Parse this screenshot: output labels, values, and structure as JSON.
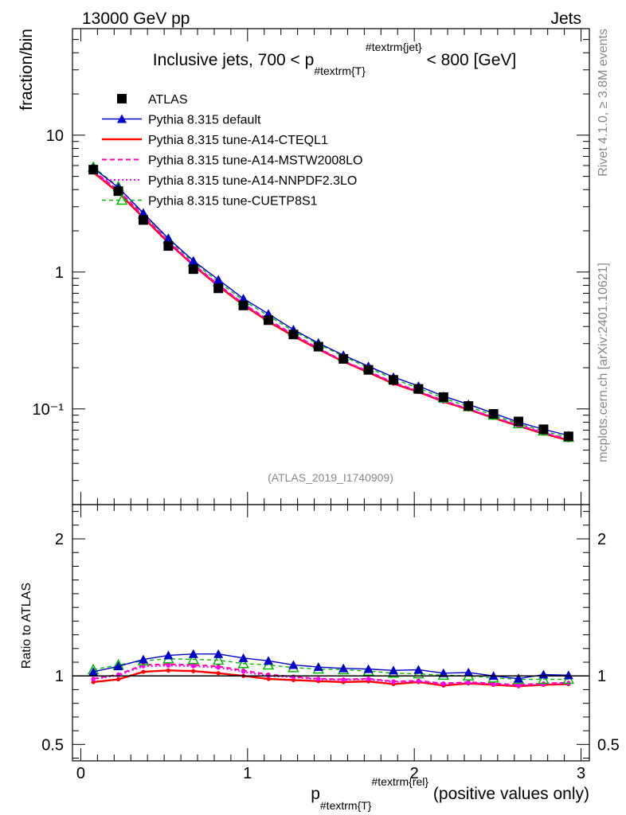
{
  "header": {
    "left": "13000 GeV pp",
    "right": "Jets"
  },
  "side_text": {
    "rivet": "Rivet 4.1.0, ≥ 3.8M events",
    "mcplots": "mcplots.cern.ch [arXiv:2401.10621]"
  },
  "analysis_id": "(ATLAS_2019_I1740909)",
  "chart_data": [
    {
      "type": "line",
      "title": "Inclusive jets, 700 < p_{#textrm{T}}^{#textrm{jet}} < 800 [GeV]",
      "title_parts": {
        "pre": "Inclusive jets, 700 < p",
        "sub": "#textrm{T}",
        "sup": "#textrm{jet}",
        "post": " < 800 [GeV]"
      },
      "ylabel": "fraction/bin",
      "yscale": "log",
      "ylim": [
        0.02,
        60
      ],
      "xlim": [
        -0.05,
        3.05
      ],
      "y_tick_labels": [
        "10",
        "1",
        "10⁻¹"
      ],
      "y_tick_values": [
        10,
        1,
        0.1
      ],
      "x": [
        0.075,
        0.225,
        0.375,
        0.525,
        0.675,
        0.825,
        0.975,
        1.125,
        1.275,
        1.425,
        1.575,
        1.725,
        1.875,
        2.025,
        2.175,
        2.325,
        2.475,
        2.625,
        2.775,
        2.925
      ],
      "series": [
        {
          "name": "ATLAS",
          "style": "data",
          "color": "#000000",
          "values": [
            5.6,
            3.9,
            2.4,
            1.55,
            1.05,
            0.76,
            0.57,
            0.445,
            0.35,
            0.285,
            0.232,
            0.193,
            0.163,
            0.14,
            0.122,
            0.105,
            0.092,
            0.081,
            0.071,
            0.063
          ]
        },
        {
          "name": "Pythia 8.315 default",
          "style": "blue-tri",
          "color": "#0000cc",
          "values": [
            5.75,
            4.15,
            2.7,
            1.76,
            1.21,
            0.88,
            0.64,
            0.495,
            0.38,
            0.303,
            0.247,
            0.205,
            0.171,
            0.147,
            0.124,
            0.108,
            0.093,
            0.08,
            0.071,
            0.064
          ]
        },
        {
          "name": "Pythia 8.315 tune-A14-CTEQL1",
          "style": "red-solid",
          "color": "#ff0000",
          "values": [
            5.35,
            3.8,
            2.5,
            1.64,
            1.12,
            0.79,
            0.575,
            0.435,
            0.34,
            0.273,
            0.222,
            0.185,
            0.153,
            0.133,
            0.113,
            0.099,
            0.086,
            0.075,
            0.066,
            0.059
          ]
        },
        {
          "name": "Pythia 8.315 tune-A14-MSTW2008LO",
          "style": "mag-dash",
          "color": "#ff00aa",
          "values": [
            5.5,
            3.95,
            2.6,
            1.68,
            1.14,
            0.81,
            0.588,
            0.447,
            0.35,
            0.278,
            0.224,
            0.188,
            0.156,
            0.135,
            0.115,
            0.1,
            0.087,
            0.076,
            0.067,
            0.06
          ]
        },
        {
          "name": "Pythia 8.315 tune-A14-NNPDF2.3LO",
          "style": "mag-dot",
          "color": "#ff00ff",
          "values": [
            5.45,
            3.9,
            2.55,
            1.66,
            1.13,
            0.8,
            0.582,
            0.443,
            0.348,
            0.276,
            0.223,
            0.187,
            0.155,
            0.134,
            0.114,
            0.1,
            0.087,
            0.076,
            0.067,
            0.06
          ]
        },
        {
          "name": "Pythia 8.315 tune-CUETP8S1",
          "style": "green-dash",
          "color": "#00bb00",
          "values": [
            5.85,
            4.2,
            2.65,
            1.74,
            1.18,
            0.85,
            0.62,
            0.48,
            0.37,
            0.298,
            0.242,
            0.2,
            0.166,
            0.142,
            0.12,
            0.104,
            0.09,
            0.078,
            0.069,
            0.062
          ]
        }
      ]
    },
    {
      "type": "line",
      "ylabel": "Ratio to ATLAS",
      "xlabel": "p_{#textrm{T}}^{#textrm{rel}} (positive values only)",
      "xlabel_parts": {
        "pre": "p",
        "sub": "#textrm{T}",
        "sup": "#textrm{rel}",
        "post": " (positive values only)"
      },
      "ylim": [
        0.38,
        2.25
      ],
      "xlim": [
        -0.05,
        3.05
      ],
      "x_tick_labels": [
        "0",
        "1",
        "2",
        "3"
      ],
      "x_tick_values": [
        0,
        1,
        2,
        3
      ],
      "y_tick_labels": [
        "2",
        "1",
        "0.5"
      ],
      "y_tick_values": [
        2,
        1,
        0.5
      ],
      "x": [
        0.075,
        0.225,
        0.375,
        0.525,
        0.675,
        0.825,
        0.975,
        1.125,
        1.275,
        1.425,
        1.575,
        1.725,
        1.875,
        2.025,
        2.175,
        2.325,
        2.475,
        2.625,
        2.775,
        2.925
      ],
      "series": [
        {
          "name": "ATLAS",
          "style": "ratio-ref",
          "color": "#000000",
          "values": [
            1,
            1,
            1,
            1,
            1,
            1,
            1,
            1,
            1,
            1,
            1,
            1,
            1,
            1,
            1,
            1,
            1,
            1,
            1,
            1
          ]
        },
        {
          "name": "Pythia 8.315 default",
          "style": "blue-tri",
          "color": "#0000cc",
          "values": [
            1.03,
            1.07,
            1.12,
            1.15,
            1.16,
            1.16,
            1.13,
            1.11,
            1.08,
            1.065,
            1.055,
            1.05,
            1.04,
            1.045,
            1.02,
            1.025,
            1.0,
            0.98,
            1.01,
            1.005
          ]
        },
        {
          "name": "Pythia 8.315 tune-A14-CTEQL1",
          "style": "red-solid",
          "color": "#ff0000",
          "values": [
            0.955,
            0.975,
            1.03,
            1.04,
            1.035,
            1.02,
            1.0,
            0.978,
            0.97,
            0.962,
            0.955,
            0.96,
            0.94,
            0.955,
            0.93,
            0.945,
            0.935,
            0.925,
            0.935,
            0.94
          ]
        },
        {
          "name": "Pythia 8.315 tune-A14-MSTW2008LO",
          "style": "mag-dash",
          "color": "#ff00aa",
          "values": [
            0.98,
            1.01,
            1.08,
            1.085,
            1.08,
            1.07,
            1.04,
            1.01,
            0.995,
            0.98,
            0.975,
            0.98,
            0.96,
            0.965,
            0.945,
            0.955,
            0.945,
            0.935,
            0.945,
            0.95
          ]
        },
        {
          "name": "Pythia 8.315 tune-A14-NNPDF2.3LO",
          "style": "mag-dot",
          "color": "#ff00ff",
          "values": [
            0.975,
            1.005,
            1.07,
            1.075,
            1.07,
            1.06,
            1.03,
            1.0,
            0.99,
            0.975,
            0.97,
            0.975,
            0.955,
            0.96,
            0.94,
            0.95,
            0.94,
            0.93,
            0.94,
            0.945
          ]
        },
        {
          "name": "Pythia 8.315 tune-CUETP8S1",
          "style": "green-dash",
          "color": "#00bb00",
          "values": [
            1.045,
            1.08,
            1.11,
            1.125,
            1.12,
            1.115,
            1.09,
            1.08,
            1.06,
            1.05,
            1.045,
            1.035,
            1.02,
            1.015,
            1.005,
            1.0,
            0.985,
            0.975,
            0.975,
            0.975
          ]
        }
      ]
    }
  ]
}
